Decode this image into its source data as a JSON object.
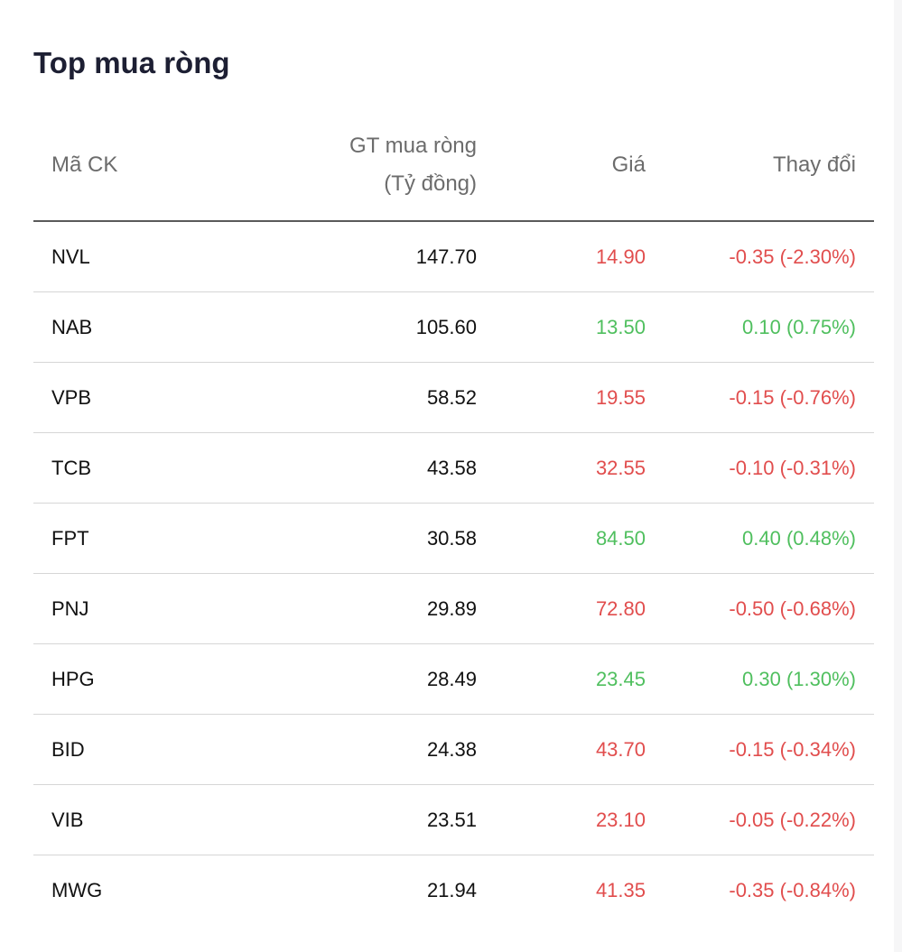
{
  "title": "Top mua ròng",
  "colors": {
    "down": "#e14d4d",
    "up": "#4fbf5e",
    "text": "#111111",
    "header_text": "#6c6c6c"
  },
  "columns": {
    "code": "Mã CK",
    "value_line1": "GT mua ròng",
    "value_line2": "(Tỷ đồng)",
    "price": "Giá",
    "change": "Thay đổi"
  },
  "rows": [
    {
      "code": "NVL",
      "value": "147.70",
      "price": "14.90",
      "change": "-0.35 (-2.30%)",
      "trend": "down"
    },
    {
      "code": "NAB",
      "value": "105.60",
      "price": "13.50",
      "change": "0.10 (0.75%)",
      "trend": "up"
    },
    {
      "code": "VPB",
      "value": "58.52",
      "price": "19.55",
      "change": "-0.15 (-0.76%)",
      "trend": "down"
    },
    {
      "code": "TCB",
      "value": "43.58",
      "price": "32.55",
      "change": "-0.10 (-0.31%)",
      "trend": "down"
    },
    {
      "code": "FPT",
      "value": "30.58",
      "price": "84.50",
      "change": "0.40 (0.48%)",
      "trend": "up"
    },
    {
      "code": "PNJ",
      "value": "29.89",
      "price": "72.80",
      "change": "-0.50 (-0.68%)",
      "trend": "down"
    },
    {
      "code": "HPG",
      "value": "28.49",
      "price": "23.45",
      "change": "0.30 (1.30%)",
      "trend": "up"
    },
    {
      "code": "BID",
      "value": "24.38",
      "price": "43.70",
      "change": "-0.15 (-0.34%)",
      "trend": "down"
    },
    {
      "code": "VIB",
      "value": "23.51",
      "price": "23.10",
      "change": "-0.05 (-0.22%)",
      "trend": "down"
    },
    {
      "code": "MWG",
      "value": "21.94",
      "price": "41.35",
      "change": "-0.35 (-0.84%)",
      "trend": "down"
    }
  ]
}
